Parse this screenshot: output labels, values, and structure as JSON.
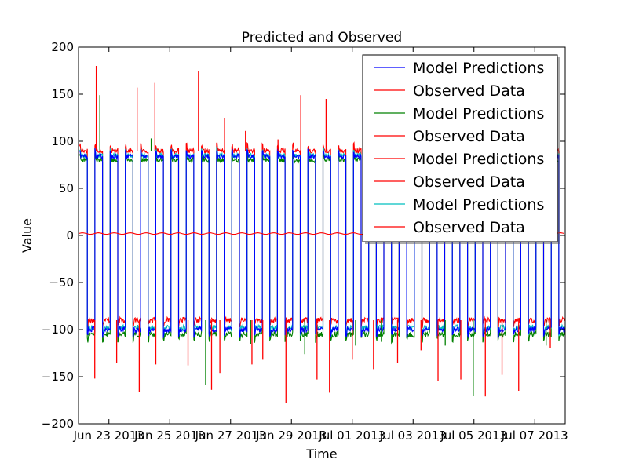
{
  "chart_data": {
    "type": "line",
    "title": "Predicted and Observed",
    "xlabel": "Time",
    "ylabel": "Value",
    "ylim": [
      -200,
      200
    ],
    "y_ticks": [
      200,
      150,
      100,
      50,
      0,
      -50,
      -100,
      -150,
      -200
    ],
    "xlim": [
      "2013-06-22",
      "2013-07-08"
    ],
    "x_ticks": [
      {
        "date": "2013-06-23",
        "label": "Jun 23 2013"
      },
      {
        "date": "2013-06-25",
        "label": "Jun 25 2013"
      },
      {
        "date": "2013-06-27",
        "label": "Jun 27 2013"
      },
      {
        "date": "2013-06-29",
        "label": "Jun 29 2013"
      },
      {
        "date": "2013-07-01",
        "label": "Jul 01 2013"
      },
      {
        "date": "2013-07-03",
        "label": "Jul 03 2013"
      },
      {
        "date": "2013-07-05",
        "label": "Jul 05 2013"
      },
      {
        "date": "2013-07-07",
        "label": "Jul 07 2013"
      }
    ],
    "grid": false,
    "legend_position": "top-right",
    "legend": [
      {
        "label": "Model Predictions",
        "color": "#0000ff"
      },
      {
        "label": "Observed Data",
        "color": "#ff0000"
      },
      {
        "label": "Model Predictions",
        "color": "#008000"
      },
      {
        "label": "Observed Data",
        "color": "#ff0000"
      },
      {
        "label": "Model Predictions",
        "color": "#ff0000"
      },
      {
        "label": "Observed Data",
        "color": "#ff0000"
      },
      {
        "label": "Model Predictions",
        "color": "#00bfbf"
      },
      {
        "label": "Observed Data",
        "color": "#ff0000"
      }
    ],
    "series": [
      {
        "color": "#ff0000",
        "pattern": "square-wave",
        "high": 90,
        "low": -90,
        "cycles_per_day": 2.0
      },
      {
        "color": "#008000",
        "pattern": "square-wave",
        "high": 80,
        "low": -105,
        "cycles_per_day": 2.0
      },
      {
        "color": "#00bfbf",
        "pattern": "square-wave",
        "high": 85,
        "low": -98,
        "cycles_per_day": 2.0
      },
      {
        "color": "#0000ff",
        "pattern": "square-wave",
        "high": 84,
        "low": -100,
        "cycles_per_day": 2.0
      },
      {
        "color": "#ff0000",
        "pattern": "flat",
        "value": 2
      }
    ],
    "spikes_red_up": [
      180,
      157,
      162,
      175,
      125,
      111,
      102,
      149,
      145,
      139,
      106,
      144,
      111,
      99,
      152,
      100
    ],
    "spikes_red_down": [
      -152,
      -135,
      -166,
      -137,
      -138,
      -164,
      -146,
      -137,
      -132,
      -178,
      -153,
      -167,
      -132,
      -142,
      -135,
      -122,
      -155,
      -153,
      -171,
      -148,
      -165,
      -120
    ],
    "spikes_green": [
      149,
      103,
      -159,
      -115,
      -126,
      -117,
      -113,
      -117,
      -170,
      -117
    ]
  }
}
